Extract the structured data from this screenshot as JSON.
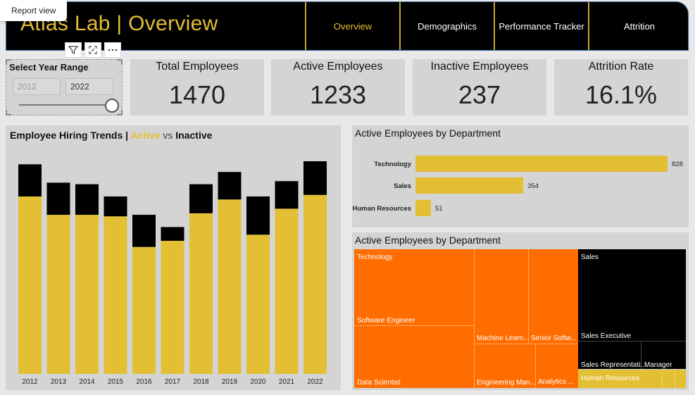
{
  "tooltip": "Report view",
  "header": {
    "title": "Atlas Lab | Overview",
    "nav": [
      "Overview",
      "Demographics",
      "Performance Tracker",
      "Attrition"
    ],
    "active_nav": "Overview"
  },
  "visual_tools": {
    "filter_icon": "filter-icon",
    "focus_icon": "focus-mode-icon",
    "more_icon": "more-options-icon"
  },
  "slicer": {
    "title": "Select Year Range",
    "start": "2012",
    "end": "2022"
  },
  "kpis": [
    {
      "label": "Total Employees",
      "value": "1470"
    },
    {
      "label": "Active Employees",
      "value": "1233"
    },
    {
      "label": "Inactive Employees",
      "value": "237"
    },
    {
      "label": "Attrition Rate",
      "value": "16.1%"
    }
  ],
  "colors": {
    "gold": "#e3bf33",
    "black": "#000000",
    "orange": "#ff6d00",
    "panel": "#d4d4d4"
  },
  "hiring_trends": {
    "title_prefix": "Employee Hiring Trends | ",
    "title_active": "Active",
    "title_vs": " vs ",
    "title_inactive": "Inactive"
  },
  "dept_bar": {
    "title": "Active Employees by Department"
  },
  "treemap": {
    "title": "Active Employees by Department",
    "labels": {
      "technology": "Technology",
      "software_engineer": "Software Engineer",
      "data_scientist": "Data Scientist",
      "machine_learning": "Machine Learn...",
      "senior_software": "Senior Softw...",
      "engineering_manager": "Engineering Man...",
      "analytics": "Analytics ...",
      "sales": "Sales",
      "sales_executive": "Sales Executive",
      "sales_representative": "Sales Representati...",
      "manager": "Manager",
      "human_resources": "Human Resources"
    }
  },
  "chart_data": [
    {
      "type": "bar",
      "stacked": true,
      "categories": [
        "2012",
        "2013",
        "2014",
        "2015",
        "2016",
        "2017",
        "2018",
        "2019",
        "2020",
        "2021",
        "2022"
      ],
      "series": [
        {
          "name": "Active",
          "values": [
            116,
            104,
            104,
            103,
            83,
            87,
            105,
            114,
            91,
            108,
            117
          ]
        },
        {
          "name": "Inactive",
          "values": [
            21,
            21,
            20,
            13,
            21,
            9,
            19,
            18,
            25,
            18,
            22
          ]
        }
      ],
      "ylim": [
        0,
        145
      ]
    },
    {
      "type": "bar",
      "orientation": "horizontal",
      "categories": [
        "Technology",
        "Sales",
        "Human Resources"
      ],
      "values": [
        828,
        354,
        51
      ],
      "xlim": [
        0,
        828
      ]
    }
  ]
}
